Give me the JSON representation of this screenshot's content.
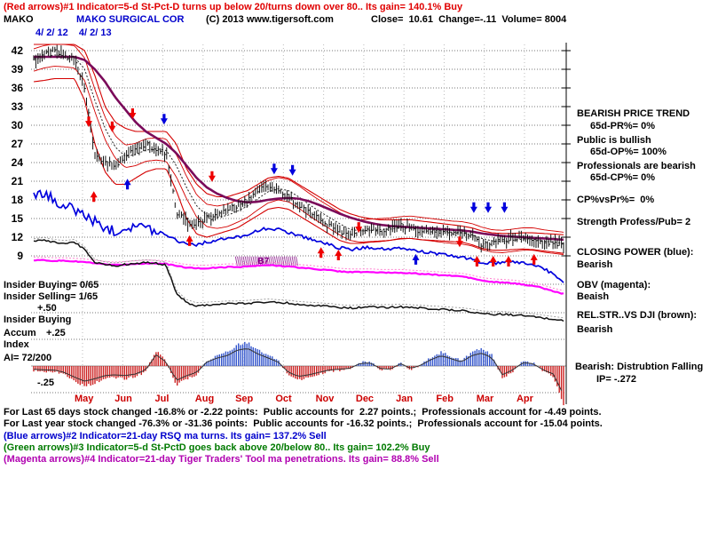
{
  "header": {
    "line1": "(Red arrows)#1 Indicator=5-d St-Pct-D turns up below 20/turns down over 80.. Its gain= 140.1% Buy",
    "ticker": "MAKO",
    "company": "MAKO SURGICAL COR",
    "copyright": "(C) 2013 www.tigersoft.com",
    "quote": "Close=  10.61  Change=-.11  Volume= 8004",
    "dates": "4/ 2/ 12    4/ 2/ 13"
  },
  "right_panel": {
    "items": [
      "BEARISH PRICE TREND",
      "65d-PR%= 0%",
      "Public is bullish",
      "65d-OP%= 100%",
      "Professionals are bearish",
      "65d-CP%= 0%",
      "CP%vsPr%=  0%",
      "Strength Profess/Pub= 2",
      "CLOSING POWER (blue):",
      "Bearish",
      "OBV (magenta):",
      "Beaish",
      "REL.STR..VS DJI (brown):",
      "Bearish",
      "Bearish: Distrubtion Falling",
      "IP= -.272"
    ]
  },
  "left_labels": {
    "ib_count": "Insider Buying= 0/65",
    "is_count": "Insider Selling= 1/65",
    "plus50": "+.50",
    "ib": "Insider Buying",
    "accum": "Accum",
    "plus25": "+.25",
    "index": "Index",
    "ai": "AI= 72/200",
    "minus25": "-.25"
  },
  "footer": {
    "lines": [
      "For Last 65 days stock changed -16.8% or -2.22 points:  Public accounts for  2.27 points.;  Professionals account for -4.49 points.",
      "For Last year stock changed -76.3% or -31.36 points:  Public accounts for -16.32 points.;  Professionals account for -15.04 points.",
      "(Blue arrows)#2 Indicator=21-day RSQ ma turns. Its gain= 137.2% Sell",
      "(Green arrows)#3 Indicator=5-d St-PctD goes back above 20/below 80.. Its gain= 102.2% Buy",
      "(Magenta arrows)#4 Indicator=21-day Tiger Traders' Tool ma penetrations. Its gain= 88.8% Sell"
    ]
  },
  "chart_data": {
    "type": "composite",
    "title": "MAKO SURGICAL COR daily chart 4/2/12 - 4/2/13 with 65-day bands, Closing Power, OBV, Rel.Str vs DJI and Tiger Accumulation Index",
    "date_start": "4/ 2/ 12",
    "date_end": "4/ 2/ 13",
    "months": [
      "May",
      "Jun",
      "Jul",
      "Aug",
      "Sep",
      "Oct",
      "Nov",
      "Dec",
      "Jan",
      "Feb",
      "Mar",
      "Apr"
    ],
    "price_axis": {
      "ticks": [
        42,
        39,
        36,
        33,
        30,
        27,
        24,
        21,
        18,
        15,
        12,
        9
      ],
      "ylim": [
        9,
        42
      ]
    },
    "weekly_series": {
      "close": [
        40.5,
        41.2,
        42,
        41.2,
        40.5,
        36,
        25.5,
        24,
        23.5,
        25,
        26.5,
        27,
        26,
        25.5,
        16,
        14.5,
        14,
        15,
        15.5,
        16.5,
        17,
        18,
        19.5,
        20.5,
        19.5,
        18.5,
        17,
        16,
        15,
        14,
        13,
        12.5,
        13,
        13.5,
        13,
        13.5,
        14,
        13.5,
        13,
        13,
        12.5,
        12.8,
        12.5,
        12,
        10.8,
        11.2,
        11.5,
        11.8,
        12,
        11.5,
        11,
        11.2,
        10.6
      ],
      "upper_band_65d": [
        44,
        43.8,
        43.5,
        43.2,
        43,
        42,
        38,
        33,
        30.5,
        29.5,
        29,
        29,
        29,
        29,
        27,
        23,
        20.5,
        19,
        18.5,
        18.5,
        19,
        19.5,
        20.5,
        21.5,
        21.8,
        21.5,
        20.5,
        19.5,
        18.5,
        17.5,
        16.5,
        15.8,
        15.3,
        15,
        14.8,
        14.8,
        14.8,
        14.8,
        14.6,
        14.4,
        14.2,
        14,
        13.8,
        13.5,
        13,
        12.7,
        12.6,
        12.6,
        12.7,
        12.7,
        12.6,
        12.5,
        12.4
      ],
      "lower_band_65d": [
        37,
        37.2,
        37.5,
        37.5,
        37.5,
        34,
        27,
        22.5,
        20.5,
        20.5,
        21.5,
        22.5,
        23,
        23,
        19.5,
        15,
        12.5,
        12,
        12.5,
        13,
        13.5,
        14.5,
        15.5,
        16.5,
        16.8,
        16.5,
        15.5,
        14.5,
        13.5,
        12.5,
        11.5,
        11,
        11,
        11.2,
        11.3,
        11.5,
        11.8,
        11.8,
        11.6,
        11.5,
        11.4,
        11.3,
        11.2,
        10.8,
        10.2,
        9.9,
        9.9,
        10,
        10.1,
        10,
        9.8,
        9.6,
        9.4
      ],
      "ma_65d": [
        41,
        41,
        41,
        41,
        41,
        40.5,
        39,
        37,
        34.5,
        32.5,
        30.5,
        29,
        28,
        27,
        25.5,
        23.5,
        21.5,
        20,
        19,
        18.3,
        17.8,
        17.6,
        17.7,
        18,
        18.2,
        18.3,
        18.2,
        17.8,
        17.2,
        16.5,
        15.8,
        15.2,
        14.7,
        14.3,
        14,
        13.8,
        13.7,
        13.6,
        13.5,
        13.4,
        13.3,
        13.2,
        13.1,
        12.9,
        12.6,
        12.4,
        12.2,
        12.1,
        12,
        11.9,
        11.8,
        11.7,
        11.6
      ],
      "ma_21d": [
        40.5,
        41,
        41.3,
        41.2,
        41,
        39,
        34,
        29.5,
        26.5,
        25,
        25.3,
        26,
        26.2,
        26,
        23.5,
        20,
        17,
        15.5,
        15.2,
        15.5,
        16.2,
        17,
        18.2,
        19.3,
        19.8,
        19.5,
        18.5,
        17.3,
        16.2,
        15.2,
        14.2,
        13.3,
        13,
        13.1,
        13.2,
        13.3,
        13.5,
        13.6,
        13.4,
        13.2,
        13,
        12.8,
        12.7,
        12.4,
        11.8,
        11.4,
        11.3,
        11.5,
        11.7,
        11.7,
        11.4,
        11.2,
        11
      ],
      "closing_power": [
        18.5,
        19,
        18,
        17,
        16.5,
        15.5,
        14.5,
        13.5,
        13,
        13.5,
        14,
        13.5,
        13,
        12.5,
        11.5,
        11,
        10.8,
        11.2,
        11.5,
        11.8,
        12,
        12.5,
        13,
        13.5,
        13.2,
        12.8,
        12.3,
        11.8,
        11.3,
        10.8,
        10.3,
        10,
        10.2,
        10.4,
        10.2,
        10,
        10.2,
        10,
        9.7,
        9.5,
        9.2,
        9,
        8.8,
        8.4,
        7.9,
        7.8,
        7.9,
        8,
        7.9,
        7.6,
        7,
        6,
        4.9
      ],
      "obv": [
        8.3,
        8.3,
        8.2,
        8.2,
        8.1,
        8,
        7.8,
        7.6,
        7.5,
        7.6,
        7.7,
        7.8,
        7.8,
        7.7,
        7.4,
        7.1,
        7,
        7,
        7.1,
        7.2,
        7.2,
        7.3,
        7.4,
        7.5,
        7.4,
        7.3,
        7.1,
        7,
        6.8,
        6.7,
        6.5,
        6.4,
        6.4,
        6.4,
        6.3,
        6.3,
        6.3,
        6.2,
        6.1,
        6,
        5.9,
        5.8,
        5.7,
        5.4,
        5,
        4.8,
        4.7,
        4.6,
        4.4,
        4.2,
        3.8,
        3.3,
        2.9
      ],
      "rel_strength_vs_dji": [
        11.3,
        11.5,
        11.2,
        11,
        11.2,
        10,
        8,
        7.6,
        7.4,
        7.6,
        7.8,
        7.9,
        7.8,
        7.5,
        3,
        1.5,
        1,
        1.1,
        1.2,
        1.3,
        1.3,
        1.4,
        1.5,
        1.6,
        1.5,
        1.4,
        1.2,
        1.1,
        1,
        0.9,
        0.7,
        0.6,
        0.7,
        0.8,
        0.7,
        0.7,
        0.8,
        0.7,
        0.6,
        0.5,
        0.4,
        0.3,
        0.2,
        0,
        -0.3,
        -0.4,
        -0.4,
        -0.5,
        -0.6,
        -0.8,
        -1,
        -1.2,
        -1.4
      ]
    },
    "accum_index": {
      "values": [
        -0.04,
        -0.05,
        -0.05,
        -0.08,
        -0.14,
        -0.19,
        -0.16,
        -0.12,
        -0.11,
        -0.12,
        -0.1,
        -0.05,
        0.14,
        0.05,
        -0.18,
        -0.12,
        -0.08,
        0.05,
        0.1,
        0.13,
        0.2,
        0.22,
        0.15,
        0.1,
        0.05,
        -0.08,
        -0.13,
        -0.11,
        -0.08,
        -0.05,
        -0.04,
        -0.03,
        0.03,
        0.04,
        -0.03,
        -0.04,
        0.03,
        -0.03,
        0.01,
        0.08,
        0.13,
        0.09,
        0.05,
        0.13,
        0.16,
        0.1,
        -0.11,
        -0.05,
        0.04,
        0.03,
        -0.05,
        -0.1,
        -0.36
      ],
      "red_override_weeks": [
        11.3,
        13.8
      ]
    },
    "arrows": {
      "red_down": [
        [
          5.4,
          29.7
        ],
        [
          7.7,
          28.9
        ],
        [
          9.7,
          31.0
        ],
        [
          17.5,
          20.9
        ],
        [
          31.9,
          12.7
        ],
        [
          41.8,
          10.4
        ]
      ],
      "red_up": [
        [
          5.9,
          19.4
        ],
        [
          15.3,
          12.3
        ],
        [
          28.2,
          10.4
        ],
        [
          29.9,
          10.0
        ],
        [
          43.5,
          9.0
        ],
        [
          45.1,
          9.0
        ],
        [
          46.6,
          9.0
        ],
        [
          49.1,
          9.3
        ]
      ],
      "blue_down": [
        [
          12.8,
          30.1
        ],
        [
          23.6,
          22.1
        ],
        [
          25.4,
          21.9
        ],
        [
          43.2,
          15.9
        ],
        [
          44.6,
          15.9
        ],
        [
          46.2,
          15.9
        ]
      ],
      "blue_up": [
        [
          9.2,
          21.4
        ],
        [
          37.5,
          9.3
        ]
      ]
    },
    "b7": {
      "label": "B7",
      "week": 22.5,
      "price": 8.0,
      "band": {
        "week_start": 19.8,
        "week_end": 25.8,
        "price_top": 8.9,
        "price_bottom": 7.4
      }
    },
    "colors": {
      "band_red": "#d40000",
      "purple_ma": "#7a0a5a",
      "closing_power_blue": "#0000dd",
      "obv_magenta": "#ff00ff",
      "hist_pos": "#3355cc",
      "hist_neg": "#cc2222",
      "hatch_purple": "#993399"
    }
  }
}
